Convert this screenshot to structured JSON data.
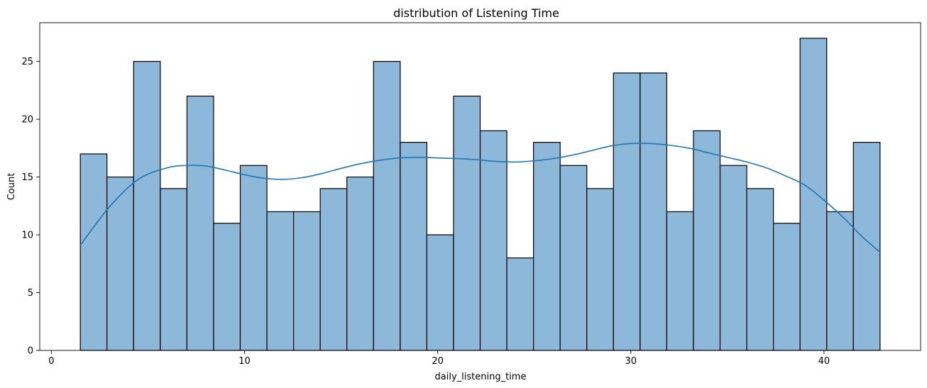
{
  "chart_data": {
    "type": "bar",
    "subtype": "histogram",
    "title": "distribution of Listening Time",
    "xlabel": "daily_listening_time",
    "ylabel": "Count",
    "xlim": [
      -0.6,
      45.0
    ],
    "ylim": [
      0,
      28.35
    ],
    "xticks": [
      0,
      10,
      20,
      30,
      40
    ],
    "yticks": [
      0,
      5,
      10,
      15,
      20,
      25
    ],
    "grid": false,
    "bin_start": 1.5,
    "bin_end": 42.9,
    "bin_count": 30,
    "counts": [
      17,
      15,
      25,
      14,
      22,
      11,
      16,
      12,
      12,
      14,
      15,
      25,
      18,
      10,
      22,
      19,
      8,
      18,
      16,
      14,
      24,
      24,
      12,
      19,
      16,
      14,
      11,
      27,
      12,
      18
    ],
    "kde": {
      "x": [
        1.5,
        3,
        4.5,
        6,
        7,
        8,
        9,
        10,
        11,
        12,
        13,
        14,
        15,
        16,
        17,
        18,
        19,
        20,
        21,
        22,
        23,
        24,
        25,
        26,
        27,
        28,
        29,
        30,
        31,
        32,
        33,
        34,
        35,
        36,
        37,
        38,
        39,
        40,
        41,
        42,
        42.9
      ],
      "y": [
        9.1,
        12.4,
        14.8,
        15.8,
        16.0,
        15.95,
        15.6,
        15.2,
        14.9,
        14.8,
        14.95,
        15.3,
        15.75,
        16.15,
        16.45,
        16.65,
        16.7,
        16.65,
        16.6,
        16.5,
        16.35,
        16.3,
        16.4,
        16.6,
        16.9,
        17.3,
        17.7,
        17.9,
        17.9,
        17.75,
        17.5,
        17.1,
        16.7,
        16.3,
        15.8,
        15.1,
        14.3,
        13.0,
        11.5,
        9.8,
        8.5
      ]
    },
    "colors": {
      "bar_fill": "#8db8da",
      "bar_edge": "#000000",
      "kde_line": "#1f77b4"
    }
  }
}
